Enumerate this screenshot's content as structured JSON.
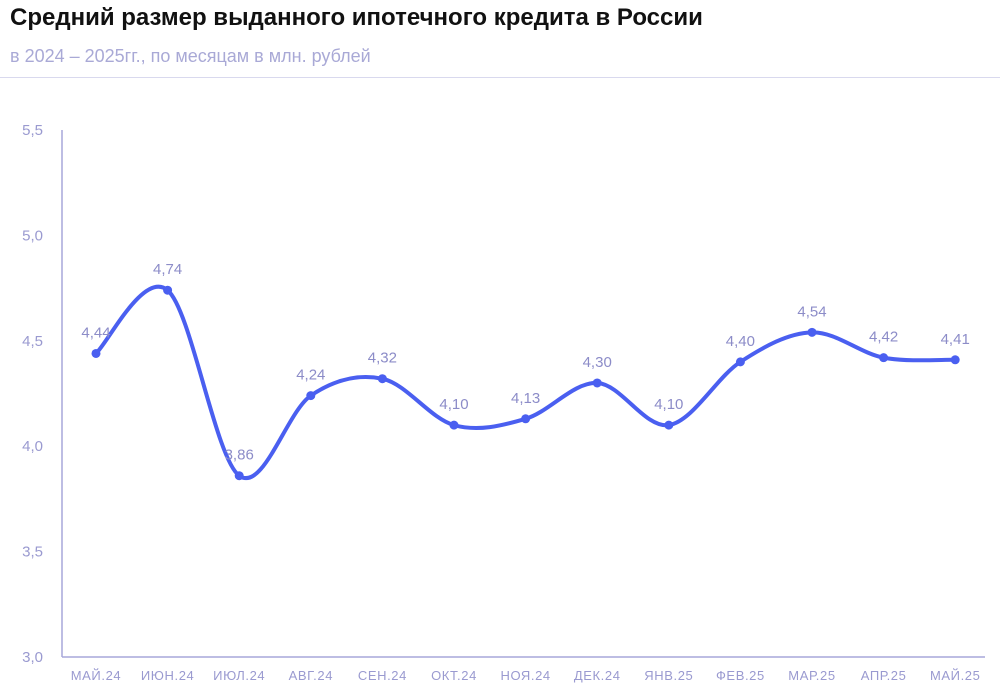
{
  "header": {
    "title": "Средний размер выданного ипотечного кредита в России",
    "subtitle": "в 2024 – 2025гг., по месяцам в млн. рублей"
  },
  "colors": {
    "line": "#4a5ff0",
    "axis": "#a7a7da",
    "text": "#9a9ad0",
    "divider": "#d9d9ee"
  },
  "chart_data": {
    "type": "line",
    "title": "Средний размер выданного ипотечного кредита в России",
    "subtitle": "в 2024 – 2025гг., по месяцам в млн. рублей",
    "xlabel": "",
    "ylabel": "",
    "categories": [
      "МАЙ.24",
      "ИЮН.24",
      "ИЮЛ.24",
      "АВГ.24",
      "СЕН.24",
      "ОКТ.24",
      "НОЯ.24",
      "ДЕК.24",
      "ЯНВ.25",
      "ФЕВ.25",
      "МАР.25",
      "АПР.25",
      "МАЙ.25"
    ],
    "series": [
      {
        "values": [
          4.44,
          4.74,
          3.86,
          4.24,
          4.32,
          4.1,
          4.13,
          4.3,
          4.1,
          4.4,
          4.54,
          4.42,
          4.41
        ],
        "labels": [
          "4,44",
          "4,74",
          "3,86",
          "4,24",
          "4,32",
          "4,10",
          "4,13",
          "4,30",
          "4,10",
          "4,40",
          "4,54",
          "4,42",
          "4,41"
        ]
      }
    ],
    "yticks": [
      "3,0",
      "3,5",
      "4,0",
      "4,5",
      "5,0",
      "5,5"
    ],
    "ylim": [
      3.0,
      5.5
    ],
    "grid": false,
    "smooth": true
  }
}
